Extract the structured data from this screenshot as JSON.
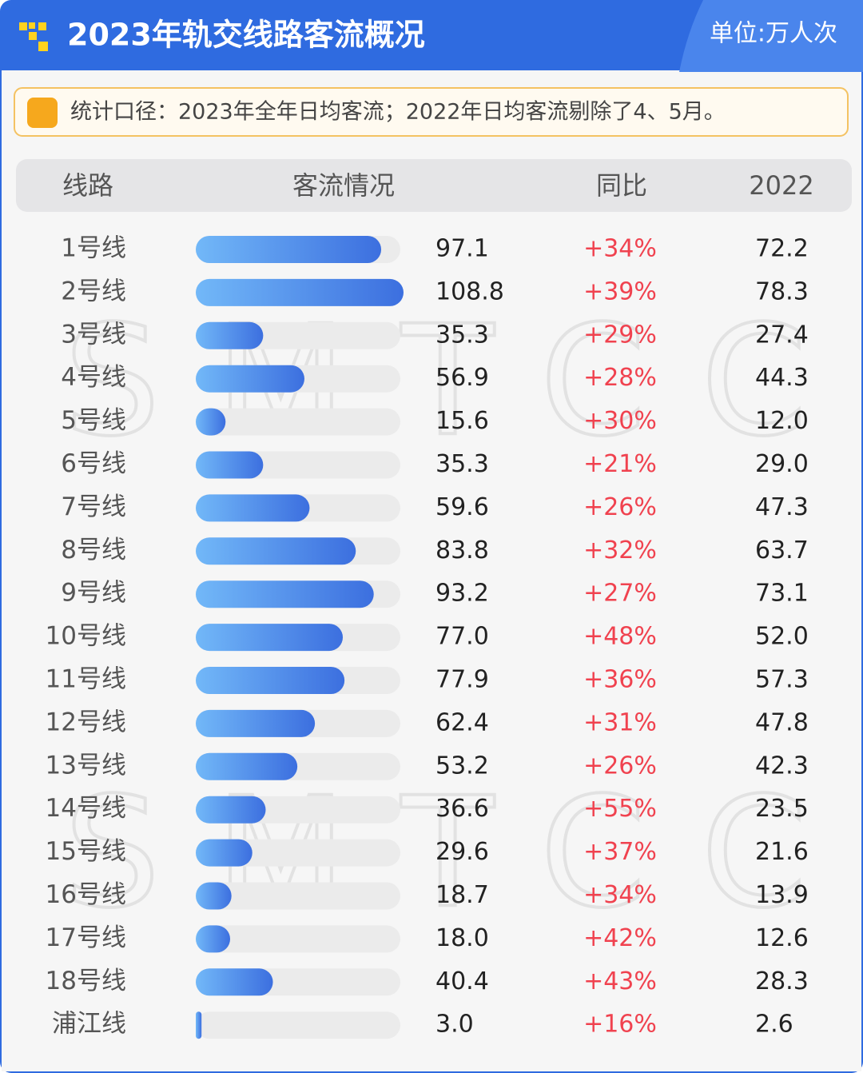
{
  "header": {
    "title": "2023年轨交线路客流概况",
    "unit": "单位:万人次"
  },
  "note": "统计口径：2023年全年日均客流；2022年日均客流剔除了4、5月。",
  "watermark": "SMTCC",
  "table": {
    "columns": [
      "线路",
      "客流情况",
      "同比",
      "2022"
    ],
    "lines": [
      "1号线",
      "2号线",
      "3号线",
      "4号线",
      "5号线",
      "6号线",
      "7号线",
      "8号线",
      "9号线",
      "10号线",
      "11号线",
      "12号线",
      "13号线",
      "14号线",
      "15号线",
      "16号线",
      "17号线",
      "18号线",
      "浦江线"
    ],
    "flow": [
      97.1,
      108.8,
      35.3,
      56.9,
      15.6,
      35.3,
      59.6,
      83.8,
      93.2,
      77.0,
      77.9,
      62.4,
      53.2,
      36.6,
      29.6,
      18.7,
      18.0,
      40.4,
      3.0
    ],
    "flow_labels": [
      "97.1",
      "108.8",
      "35.3",
      "56.9",
      "15.6",
      "35.3",
      "59.6",
      "83.8",
      "93.2",
      "77.0",
      "77.9",
      "62.4",
      "53.2",
      "36.6",
      "29.6",
      "18.7",
      "18.0",
      "40.4",
      "3.0"
    ],
    "yoy": [
      "+34%",
      "+39%",
      "+29%",
      "+28%",
      "+30%",
      "+21%",
      "+26%",
      "+32%",
      "+27%",
      "+48%",
      "+36%",
      "+31%",
      "+26%",
      "+55%",
      "+37%",
      "+34%",
      "+42%",
      "+43%",
      "+16%"
    ],
    "y2022": [
      "72.2",
      "78.3",
      "27.4",
      "44.3",
      "12.0",
      "29.0",
      "47.3",
      "63.7",
      "73.1",
      "52.0",
      "57.3",
      "47.8",
      "42.3",
      "23.5",
      "21.6",
      "13.9",
      "12.6",
      "28.3",
      "2.6"
    ]
  }
}
